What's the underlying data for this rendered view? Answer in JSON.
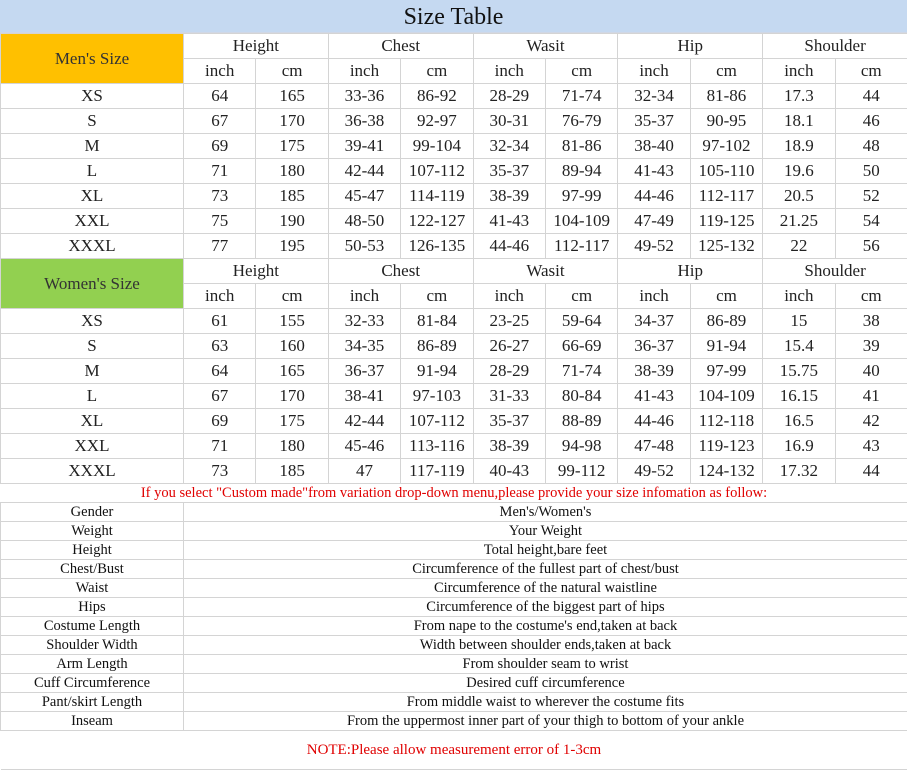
{
  "title": "Size Table",
  "groups": [
    "Height",
    "Chest",
    "Wasit",
    "Hip",
    "Shoulder"
  ],
  "units": [
    "inch",
    "cm"
  ],
  "colors": {
    "title_bg": "#c5d9f1",
    "men": "#ffc000",
    "women": "#92d050",
    "warning": "#e00000"
  },
  "men": {
    "label": "Men's Size",
    "rows": [
      [
        "XS",
        "64",
        "165",
        "33-36",
        "86-92",
        "28-29",
        "71-74",
        "32-34",
        "81-86",
        "17.3",
        "44"
      ],
      [
        "S",
        "67",
        "170",
        "36-38",
        "92-97",
        "30-31",
        "76-79",
        "35-37",
        "90-95",
        "18.1",
        "46"
      ],
      [
        "M",
        "69",
        "175",
        "39-41",
        "99-104",
        "32-34",
        "81-86",
        "38-40",
        "97-102",
        "18.9",
        "48"
      ],
      [
        "L",
        "71",
        "180",
        "42-44",
        "107-112",
        "35-37",
        "89-94",
        "41-43",
        "105-110",
        "19.6",
        "50"
      ],
      [
        "XL",
        "73",
        "185",
        "45-47",
        "114-119",
        "38-39",
        "97-99",
        "44-46",
        "112-117",
        "20.5",
        "52"
      ],
      [
        "XXL",
        "75",
        "190",
        "48-50",
        "122-127",
        "41-43",
        "104-109",
        "47-49",
        "119-125",
        "21.25",
        "54"
      ],
      [
        "XXXL",
        "77",
        "195",
        "50-53",
        "126-135",
        "44-46",
        "112-117",
        "49-52",
        "125-132",
        "22",
        "56"
      ]
    ]
  },
  "women": {
    "label": "Women's Size",
    "rows": [
      [
        "XS",
        "61",
        "155",
        "32-33",
        "81-84",
        "23-25",
        "59-64",
        "34-37",
        "86-89",
        "15",
        "38"
      ],
      [
        "S",
        "63",
        "160",
        "34-35",
        "86-89",
        "26-27",
        "66-69",
        "36-37",
        "91-94",
        "15.4",
        "39"
      ],
      [
        "M",
        "64",
        "165",
        "36-37",
        "91-94",
        "28-29",
        "71-74",
        "38-39",
        "97-99",
        "15.75",
        "40"
      ],
      [
        "L",
        "67",
        "170",
        "38-41",
        "97-103",
        "31-33",
        "80-84",
        "41-43",
        "104-109",
        "16.15",
        "41"
      ],
      [
        "XL",
        "69",
        "175",
        "42-44",
        "107-112",
        "35-37",
        "88-89",
        "44-46",
        "112-118",
        "16.5",
        "42"
      ],
      [
        "XXL",
        "71",
        "180",
        "45-46",
        "113-116",
        "38-39",
        "94-98",
        "47-48",
        "119-123",
        "16.9",
        "43"
      ],
      [
        "XXXL",
        "73",
        "185",
        "47",
        "117-119",
        "40-43",
        "99-112",
        "49-52",
        "124-132",
        "17.32",
        "44"
      ]
    ]
  },
  "custom_notice": "If you select \"Custom made\"from variation drop-down menu,please provide your size infomation as follow:",
  "custom_fields": [
    [
      "Gender",
      "Men's/Women's"
    ],
    [
      "Weight",
      "Your Weight"
    ],
    [
      "Height",
      "Total height,bare feet"
    ],
    [
      "Chest/Bust",
      "Circumference of the fullest part of chest/bust"
    ],
    [
      "Waist",
      "Circumference of the natural waistline"
    ],
    [
      "Hips",
      "Circumference of the biggest part of hips"
    ],
    [
      "Costume Length",
      "From nape to the costume's end,taken at back"
    ],
    [
      "Shoulder Width",
      "Width between shoulder ends,taken at back"
    ],
    [
      "Arm Length",
      "From shoulder seam to wrist"
    ],
    [
      "Cuff Circumference",
      "Desired cuff circumference"
    ],
    [
      "Pant/skirt Length",
      "From middle waist to wherever the costume fits"
    ],
    [
      "Inseam",
      "From the uppermost inner part of your thigh to bottom of your ankle"
    ]
  ],
  "note": "NOTE:Please allow measurement error of 1-3cm"
}
